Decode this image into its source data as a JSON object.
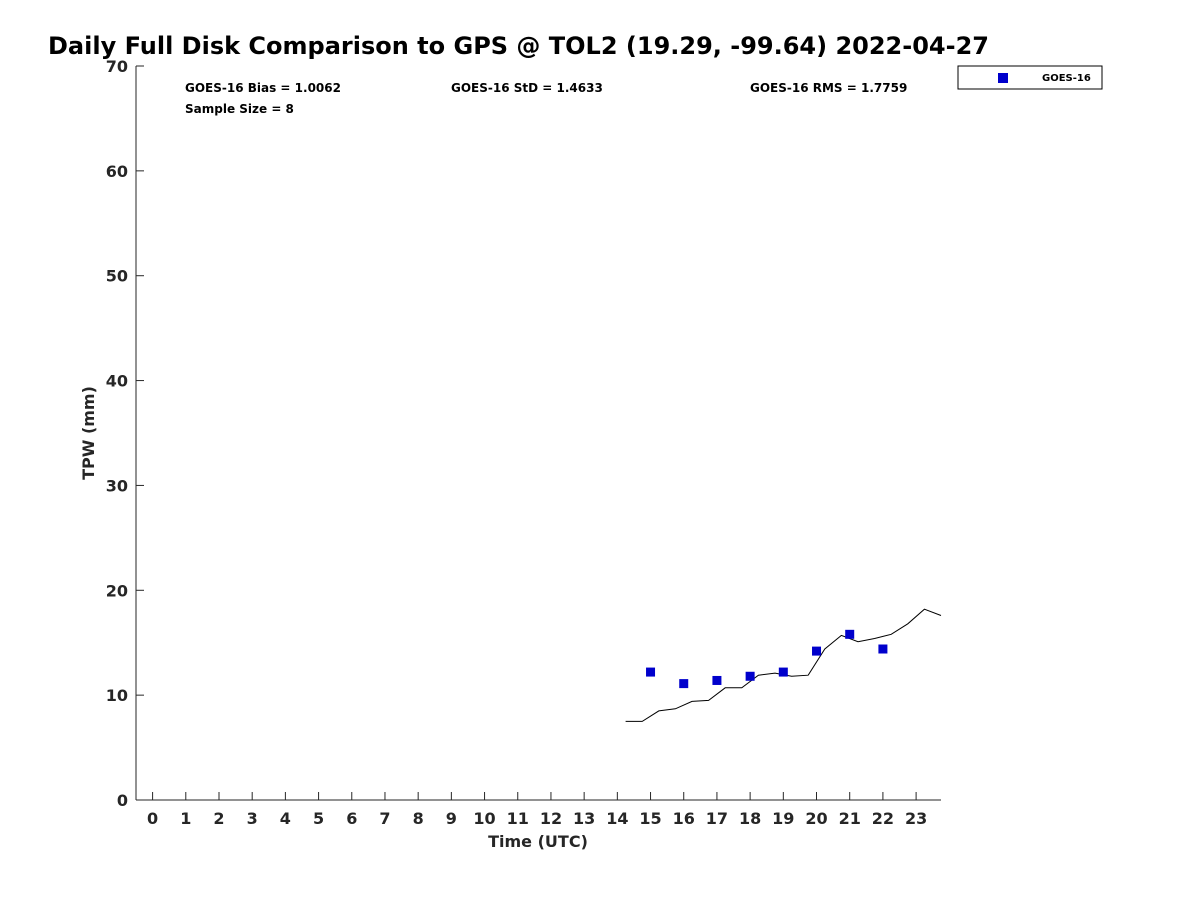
{
  "chart_data": {
    "type": "scatter",
    "title": "Daily Full Disk Comparison to GPS @ TOL2 (19.29, -99.64) 2022-04-27",
    "xlabel": "Time (UTC)",
    "ylabel": "TPW (mm)",
    "xlim": [
      -0.5,
      23.75
    ],
    "ylim": [
      0,
      70
    ],
    "x_ticks": [
      0,
      1,
      2,
      3,
      4,
      5,
      6,
      7,
      8,
      9,
      10,
      11,
      12,
      13,
      14,
      15,
      16,
      17,
      18,
      19,
      20,
      21,
      22,
      23
    ],
    "y_ticks": [
      0,
      10,
      20,
      30,
      40,
      50,
      60,
      70
    ],
    "grid": false,
    "legend_position": "top-right",
    "stats": {
      "bias": "GOES-16 Bias = 1.0062",
      "std": "GOES-16 StD = 1.4633",
      "rms": "GOES-16 RMS = 1.7759",
      "sample_size": "Sample Size = 8"
    },
    "series": [
      {
        "name": "GOES-16",
        "kind": "scatter",
        "color": "#0000cc",
        "x": [
          15,
          16,
          17,
          18,
          19,
          20,
          21,
          22
        ],
        "y": [
          12.2,
          11.1,
          11.4,
          11.8,
          12.2,
          14.2,
          15.8,
          14.4
        ]
      },
      {
        "kind": "line",
        "color": "#000000",
        "x": [
          14.25,
          14.75,
          15.25,
          15.75,
          16.25,
          16.75,
          17.25,
          17.75,
          18.25,
          18.75,
          19.25,
          19.75,
          20.25,
          20.75,
          21.25,
          21.75,
          22.25,
          22.75,
          23.25,
          23.75
        ],
        "y": [
          7.5,
          7.5,
          8.5,
          8.7,
          9.4,
          9.5,
          10.7,
          10.7,
          11.9,
          12.1,
          11.8,
          11.9,
          14.4,
          15.7,
          15.1,
          15.4,
          15.8,
          16.8,
          18.2,
          17.6
        ]
      }
    ]
  }
}
